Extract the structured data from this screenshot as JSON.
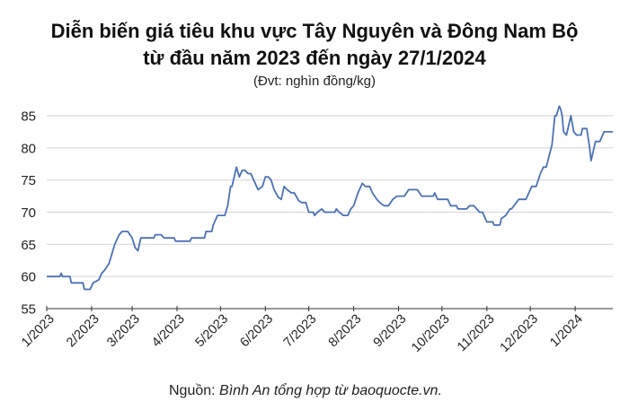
{
  "chart_data": {
    "type": "line",
    "title": "Diễn biến giá tiêu khu vực Tây Nguyên và Đông Nam Bộ",
    "title_line2": "từ đầu năm 2023 đến ngày 27/1/2024",
    "subtitle": "(Đvt: nghìn đồng/kg)",
    "source_prefix": "Nguồn: ",
    "source_text": "Bình An tổng hợp từ baoquocte.vn.",
    "ylim": [
      55,
      85
    ],
    "yticks": [
      "55",
      "60",
      "65",
      "70",
      "75",
      "80",
      "85"
    ],
    "xlim": [
      "2023-01-01",
      "2024-01-27"
    ],
    "xticks": [
      {
        "date": "2023-01-01",
        "label": "1/2023"
      },
      {
        "date": "2023-02-01",
        "label": "2/2023"
      },
      {
        "date": "2023-03-01",
        "label": "3/2023"
      },
      {
        "date": "2023-04-01",
        "label": "4/2023"
      },
      {
        "date": "2023-05-01",
        "label": "5/2023"
      },
      {
        "date": "2023-06-01",
        "label": "6/2023"
      },
      {
        "date": "2023-07-01",
        "label": "7/2023"
      },
      {
        "date": "2023-08-01",
        "label": "8/2023"
      },
      {
        "date": "2023-09-01",
        "label": "9/2023"
      },
      {
        "date": "2023-10-01",
        "label": "10/2023"
      },
      {
        "date": "2023-11-01",
        "label": "11/2023"
      },
      {
        "date": "2023-12-01",
        "label": "12/2023"
      },
      {
        "date": "2024-01-01",
        "label": "1/2024"
      }
    ],
    "grid": "horizontal",
    "line_color": "#4a72b8",
    "series": [
      {
        "points": [
          [
            "2023-01-01",
            60
          ],
          [
            "2023-01-10",
            60
          ],
          [
            "2023-01-11",
            60.5
          ],
          [
            "2023-01-12",
            60
          ],
          [
            "2023-01-17",
            60
          ],
          [
            "2023-01-18",
            59
          ],
          [
            "2023-01-26",
            59
          ],
          [
            "2023-01-27",
            58
          ],
          [
            "2023-01-31",
            58
          ],
          [
            "2023-02-02",
            59
          ],
          [
            "2023-02-06",
            59.5
          ],
          [
            "2023-02-08",
            60.5
          ],
          [
            "2023-02-10",
            61
          ],
          [
            "2023-02-13",
            62
          ],
          [
            "2023-02-15",
            63.5
          ],
          [
            "2023-02-17",
            65
          ],
          [
            "2023-02-20",
            66.5
          ],
          [
            "2023-02-22",
            67
          ],
          [
            "2023-02-26",
            67
          ],
          [
            "2023-03-01",
            66
          ],
          [
            "2023-03-03",
            64.5
          ],
          [
            "2023-03-05",
            64
          ],
          [
            "2023-03-07",
            66
          ],
          [
            "2023-03-16",
            66
          ],
          [
            "2023-03-17",
            66.5
          ],
          [
            "2023-03-21",
            66.5
          ],
          [
            "2023-03-23",
            66
          ],
          [
            "2023-03-30",
            66
          ],
          [
            "2023-03-31",
            65.5
          ],
          [
            "2023-04-10",
            65.5
          ],
          [
            "2023-04-11",
            66
          ],
          [
            "2023-04-20",
            66
          ],
          [
            "2023-04-21",
            67
          ],
          [
            "2023-04-25",
            67
          ],
          [
            "2023-04-26",
            68
          ],
          [
            "2023-04-29",
            69.5
          ],
          [
            "2023-05-04",
            69.5
          ],
          [
            "2023-05-06",
            71
          ],
          [
            "2023-05-08",
            74
          ],
          [
            "2023-05-09",
            74
          ],
          [
            "2023-05-12",
            77
          ],
          [
            "2023-05-14",
            75.5
          ],
          [
            "2023-05-16",
            76.5
          ],
          [
            "2023-05-18",
            76.5
          ],
          [
            "2023-05-20",
            76
          ],
          [
            "2023-05-22",
            76
          ],
          [
            "2023-05-24",
            75
          ],
          [
            "2023-05-27",
            73.5
          ],
          [
            "2023-05-30",
            74
          ],
          [
            "2023-06-01",
            75.5
          ],
          [
            "2023-06-03",
            75.5
          ],
          [
            "2023-06-05",
            75
          ],
          [
            "2023-06-07",
            73.5
          ],
          [
            "2023-06-10",
            72.3
          ],
          [
            "2023-06-12",
            72
          ],
          [
            "2023-06-14",
            74
          ],
          [
            "2023-06-16",
            73.5
          ],
          [
            "2023-06-19",
            73
          ],
          [
            "2023-06-21",
            73
          ],
          [
            "2023-06-24",
            71.8
          ],
          [
            "2023-06-26",
            71.5
          ],
          [
            "2023-06-29",
            71.5
          ],
          [
            "2023-07-01",
            70
          ],
          [
            "2023-07-04",
            70
          ],
          [
            "2023-07-05",
            69.5
          ],
          [
            "2023-07-07",
            70
          ],
          [
            "2023-07-10",
            70.5
          ],
          [
            "2023-07-12",
            70
          ],
          [
            "2023-07-19",
            70
          ],
          [
            "2023-07-20",
            70.5
          ],
          [
            "2023-07-22",
            70
          ],
          [
            "2023-07-25",
            69.5
          ],
          [
            "2023-07-28",
            69.5
          ],
          [
            "2023-07-30",
            70.5
          ],
          [
            "2023-08-01",
            71
          ],
          [
            "2023-08-04",
            73
          ],
          [
            "2023-08-07",
            74.5
          ],
          [
            "2023-08-09",
            74
          ],
          [
            "2023-08-12",
            74
          ],
          [
            "2023-08-14",
            73
          ],
          [
            "2023-08-17",
            72
          ],
          [
            "2023-08-19",
            71.5
          ],
          [
            "2023-08-22",
            71
          ],
          [
            "2023-08-25",
            71
          ],
          [
            "2023-08-28",
            72
          ],
          [
            "2023-08-31",
            72.5
          ],
          [
            "2023-09-05",
            72.5
          ],
          [
            "2023-09-08",
            73.5
          ],
          [
            "2023-09-14",
            73.5
          ],
          [
            "2023-09-17",
            72.5
          ],
          [
            "2023-09-25",
            72.5
          ],
          [
            "2023-09-26",
            73
          ],
          [
            "2023-09-28",
            72
          ],
          [
            "2023-10-05",
            72
          ],
          [
            "2023-10-07",
            71
          ],
          [
            "2023-10-11",
            71
          ],
          [
            "2023-10-12",
            70.5
          ],
          [
            "2023-10-18",
            70.5
          ],
          [
            "2023-10-20",
            71
          ],
          [
            "2023-10-23",
            71
          ],
          [
            "2023-10-27",
            70
          ],
          [
            "2023-10-29",
            70
          ],
          [
            "2023-10-31",
            69
          ],
          [
            "2023-11-01",
            68.5
          ],
          [
            "2023-11-05",
            68.5
          ],
          [
            "2023-11-06",
            68
          ],
          [
            "2023-11-10",
            68
          ],
          [
            "2023-11-11",
            69
          ],
          [
            "2023-11-14",
            69.5
          ],
          [
            "2023-11-17",
            70.5
          ],
          [
            "2023-11-18",
            70.5
          ],
          [
            "2023-11-23",
            72
          ],
          [
            "2023-11-28",
            72
          ],
          [
            "2023-12-02",
            74
          ],
          [
            "2023-12-05",
            74
          ],
          [
            "2023-12-08",
            76
          ],
          [
            "2023-12-10",
            77
          ],
          [
            "2023-12-12",
            77
          ],
          [
            "2023-12-16",
            80.5
          ],
          [
            "2023-12-18",
            85
          ],
          [
            "2023-12-19",
            85
          ],
          [
            "2023-12-21",
            86.5
          ],
          [
            "2023-12-22",
            86
          ],
          [
            "2023-12-23",
            85
          ],
          [
            "2023-12-24",
            82.5
          ],
          [
            "2023-12-26",
            82
          ],
          [
            "2023-12-28",
            84
          ],
          [
            "2023-12-29",
            85
          ],
          [
            "2023-12-31",
            82.5
          ],
          [
            "2024-01-02",
            82
          ],
          [
            "2024-01-05",
            82
          ],
          [
            "2024-01-06",
            83
          ],
          [
            "2024-01-09",
            83
          ],
          [
            "2024-01-11",
            80
          ],
          [
            "2024-01-12",
            78
          ],
          [
            "2024-01-15",
            81
          ],
          [
            "2024-01-18",
            81
          ],
          [
            "2024-01-21",
            82.5
          ],
          [
            "2024-01-27",
            82.5
          ]
        ]
      }
    ]
  }
}
